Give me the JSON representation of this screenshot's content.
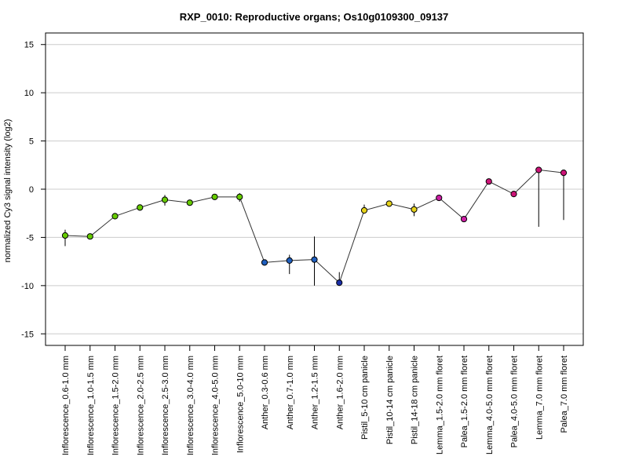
{
  "chart_data": {
    "type": "line",
    "title": "RXP_0010: Reproductive organs; Os10g0109300_09137",
    "xlabel": "",
    "ylabel": "normalized Cy3 signal intensity (log2)",
    "ylim": [
      -16.2,
      16.2
    ],
    "yticks": [
      -15,
      -10,
      -5,
      0,
      5,
      10,
      15
    ],
    "grid": true,
    "legend": "none",
    "categories": [
      "Inflorescence_0.6-1.0 mm",
      "Inflorescence_1.0-1.5 mm",
      "Inflorescence_1.5-2.0 mm",
      "Inflorescence_2.0-2.5 mm",
      "Inflorescence_2.5-3.0 mm",
      "Inflorescence_3.0-4.0 mm",
      "Inflorescence_4.0-5.0 mm",
      "Inflorescence_5.0-10 mm",
      "Anther_0.3-0.6 mm",
      "Anther_0.7-1.0 mm",
      "Anther_1.2-1.5 mm",
      "Anther_1.6-2.0 mm",
      "Pistil_5-10 cm panicle",
      "Pistil_10-14 cm panicle",
      "Pistil_14-18 cm panicle",
      "Lemma_1.5-2.0 mm floret",
      "Palea_1.5-2.0 mm floret",
      "Lemma_4.0-5.0 mm floret",
      "Palea_4.0-5.0 mm floret",
      "Lemma_7.0 mm floret",
      "Palea_7.0 mm floret"
    ],
    "series": [
      {
        "values": [
          -4.8,
          -4.9,
          -2.8,
          -1.9,
          -1.1,
          -1.4,
          -0.8,
          -0.8,
          -7.6,
          -7.4,
          -7.3,
          -9.7,
          -2.2,
          -1.5,
          -2.1,
          -0.9,
          -3.1,
          0.8,
          -0.5,
          2.0,
          1.7
        ],
        "err_low": [
          -5.9,
          -5.0,
          -2.9,
          -2.1,
          -1.7,
          -1.5,
          -0.9,
          -1.3,
          -7.7,
          -8.8,
          -10.0,
          -10.0,
          -2.5,
          -1.8,
          -2.8,
          -0.9,
          -3.3,
          0.6,
          -0.8,
          -3.9,
          -3.2
        ],
        "err_high": [
          -4.2,
          -4.8,
          -2.7,
          -1.7,
          -0.6,
          -1.3,
          -0.7,
          -0.4,
          -7.5,
          -6.8,
          -4.9,
          -8.6,
          -1.6,
          -1.2,
          -1.5,
          -0.8,
          -2.9,
          1.1,
          -0.3,
          2.2,
          1.8
        ],
        "point_colors": [
          "#66cc00",
          "#66cc00",
          "#66cc00",
          "#66cc00",
          "#66cc00",
          "#66cc00",
          "#66cc00",
          "#66cc00",
          "#1f5fbf",
          "#1f5fbf",
          "#1f5fbf",
          "#1b2fa8",
          "#e6d21a",
          "#e6d21a",
          "#e6d21a",
          "#cc1fa5",
          "#cc1fa5",
          "#cc1377",
          "#cc1377",
          "#cc1377",
          "#cc1377"
        ]
      }
    ],
    "colors": {
      "line": "#333333",
      "grid": "#cccccc",
      "frame": "#000000"
    }
  }
}
